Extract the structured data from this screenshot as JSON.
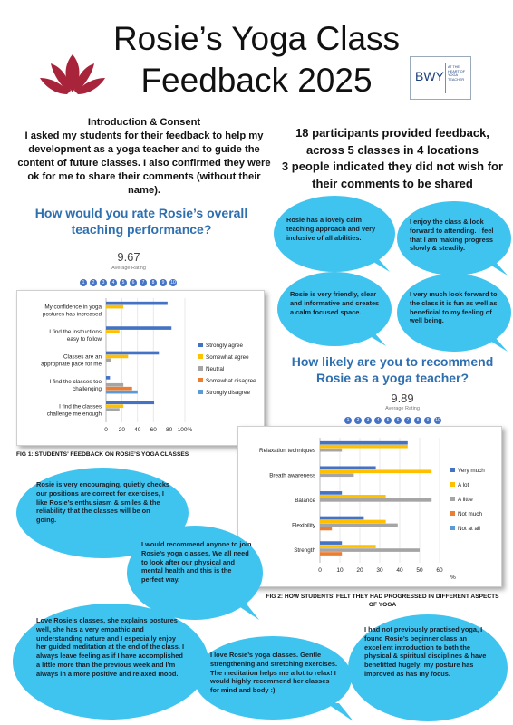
{
  "header": {
    "title_line1": "Rosie’s Yoga Class",
    "title_line2": "Feedback 2025",
    "logo_text": "BWY",
    "logo_sub": "AT THE HEART OF YOGA TEACHER"
  },
  "intro": {
    "heading": "Introduction & Consent",
    "body": "I asked my students for their feedback to help my development as a yoga teacher and to guide the content of future classes. I also confirmed they were ok for me to share their comments (without their name)."
  },
  "stats": {
    "line1": "18 participants provided feedback, across 5 classes in 4 locations",
    "line2": "3 people indicated they did not wish for their comments to be shared"
  },
  "rating1": {
    "question": "How would you rate Rosie’s overall teaching performance?",
    "value": "9.67",
    "label": "Average Rating",
    "scale": [
      "1",
      "2",
      "3",
      "4",
      "5",
      "6",
      "7",
      "8",
      "9",
      "10"
    ]
  },
  "rating2": {
    "question": "How likely are you to recommend Rosie as a yoga teacher?",
    "value": "9.89",
    "label": "Average Rating",
    "scale": [
      "1",
      "2",
      "3",
      "4",
      "5",
      "6",
      "7",
      "8",
      "9",
      "10"
    ]
  },
  "comments": [
    "Rosie has a lovely calm teaching approach and very inclusive of all abilities.",
    "I enjoy the class & look forward to attending. I feel that I am making progress slowly & steadily.",
    "Rosie is very friendly, clear and informative and creates a calm focused space.",
    "I very much look forward to the class it is fun as well as beneficial to my feeling of well being.",
    "Rosie is very encouraging, quietly checks our positions are correct for exercises, I like Rosie’s enthusiasm & smiles & the reliability that the classes will be on going.",
    "I would recommend anyone to join Rosie’s yoga classes, We all need to look after our physical and mental health and this is the perfect way.",
    "Love Rosie’s classes, she explains postures well, she has a very empathic and understanding nature and I especially enjoy her guided meditation at the end of the class. I always leave feeling as if I have accomplished a little more than the previous week and I’m always in a more positive and relaxed mood.",
    "I love Rosie’s yoga classes. Gentle strengthening and stretching exercises. The meditation helps me a lot to relax! I would highly recommend her classes for mind and body :)",
    "I had not previously practised yoga, I found Rosie’s beginner class an excellent introduction to both the physical & spiritual disciplines & have benefitted hugely; my posture has improved as has my focus."
  ],
  "chart_data": [
    {
      "type": "bar",
      "orientation": "horizontal",
      "caption": "FIG 1: STUDENTS’ FEEDBACK ON ROSIE’S YOGA CLASSES",
      "categories": [
        "My confidence in yoga postures has increased",
        "I find the instructions easy to follow",
        "Classes are an appropriate pace for me",
        "I find the classes too challenging",
        "I find the classes challenge me enough"
      ],
      "series": [
        {
          "name": "Strongly agree",
          "color": "#4472C4",
          "values": [
            78,
            83,
            67,
            5,
            61
          ]
        },
        {
          "name": "Somewhat agree",
          "color": "#FFC000",
          "values": [
            22,
            17,
            28,
            0,
            22
          ]
        },
        {
          "name": "Neutral",
          "color": "#A5A5A5",
          "values": [
            0,
            0,
            6,
            22,
            17
          ]
        },
        {
          "name": "Somewhat disagree",
          "color": "#ED7D31",
          "values": [
            0,
            0,
            0,
            33,
            0
          ]
        },
        {
          "name": "Strongly disagree",
          "color": "#5B9BD5",
          "values": [
            0,
            0,
            0,
            40,
            0
          ]
        }
      ],
      "ticks": [
        "0",
        "20",
        "40",
        "60",
        "80",
        "100%"
      ],
      "xlim": [
        0,
        100
      ],
      "legend": "right",
      "grid": true
    },
    {
      "type": "bar",
      "orientation": "horizontal",
      "caption": "FIG 2: HOW STUDENTS' FELT THEY HAD PROGRESSED IN DIFFERENT ASPECTS OF YOGA",
      "categories": [
        "Relaxation techniques",
        "Breath awareness",
        "Balance",
        "Flexibility",
        "Strength"
      ],
      "series": [
        {
          "name": "Very much",
          "color": "#4472C4",
          "values": [
            44,
            28,
            11,
            22,
            11
          ]
        },
        {
          "name": "A lot",
          "color": "#FFC000",
          "values": [
            44,
            56,
            33,
            33,
            28
          ]
        },
        {
          "name": "A little",
          "color": "#A5A5A5",
          "values": [
            11,
            17,
            56,
            39,
            50
          ]
        },
        {
          "name": "Not much",
          "color": "#ED7D31",
          "values": [
            0,
            0,
            0,
            6,
            11
          ]
        },
        {
          "name": "Not at all",
          "color": "#5B9BD5",
          "values": [
            0,
            0,
            0,
            0,
            0
          ]
        }
      ],
      "ticks": [
        "0",
        "10",
        "20",
        "30",
        "40",
        "50",
        "60"
      ],
      "unit_label": "%",
      "xlim": [
        0,
        60
      ],
      "legend": "right",
      "grid": true
    }
  ]
}
